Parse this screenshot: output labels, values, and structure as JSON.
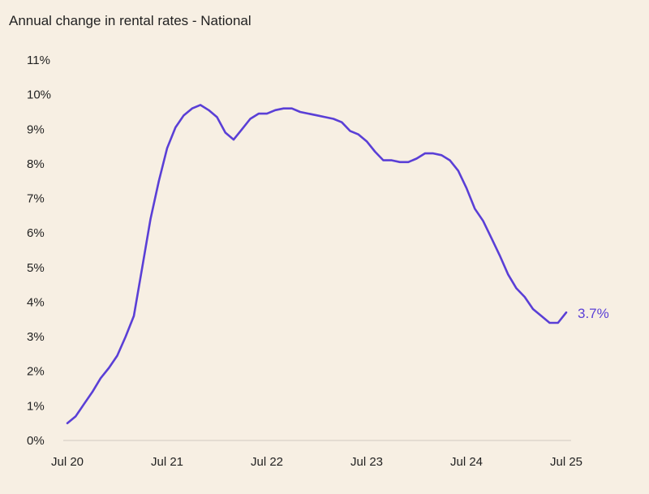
{
  "chart_data": {
    "type": "line",
    "title": "Annual change in rental rates - National",
    "xlabel": "",
    "ylabel": "",
    "x_start": "Jul 20",
    "x_end": "Jul 25",
    "x_frequency": "monthly",
    "x_tick_labels": [
      "Jul 20",
      "Jul 21",
      "Jul 22",
      "Jul 23",
      "Jul 24",
      "Jul 25"
    ],
    "y_tick_labels": [
      "0%",
      "1%",
      "2%",
      "3%",
      "4%",
      "5%",
      "6%",
      "7%",
      "8%",
      "9%",
      "10%",
      "11%"
    ],
    "ylim": [
      0,
      11
    ],
    "grid": false,
    "line_color": "#5a3fd6",
    "series": [
      {
        "values": [
          0.5,
          0.7,
          1.05,
          1.4,
          1.8,
          2.1,
          2.45,
          3.0,
          3.6,
          5.0,
          6.4,
          7.5,
          8.45,
          9.05,
          9.4,
          9.6,
          9.7,
          9.55,
          9.35,
          8.9,
          8.7,
          9.0,
          9.3,
          9.45,
          9.45,
          9.55,
          9.6,
          9.6,
          9.5,
          9.45,
          9.4,
          9.35,
          9.3,
          9.2,
          8.95,
          8.85,
          8.65,
          8.35,
          8.1,
          8.1,
          8.05,
          8.05,
          8.15,
          8.3,
          8.3,
          8.25,
          8.1,
          7.8,
          7.3,
          6.7,
          6.35,
          5.85,
          5.35,
          4.8,
          4.4,
          4.15,
          3.8,
          3.6,
          3.4,
          3.4,
          3.7
        ]
      }
    ],
    "end_label": "3.7%"
  }
}
